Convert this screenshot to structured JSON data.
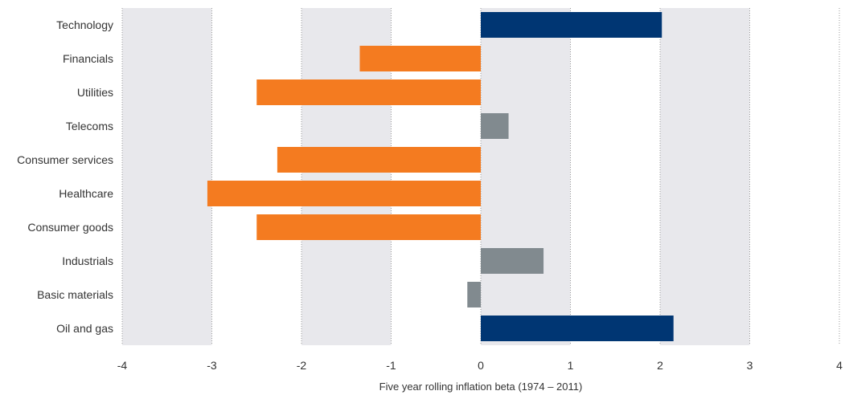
{
  "chart_data": {
    "type": "bar",
    "orientation": "horizontal",
    "title": "",
    "xlabel": "Five year rolling inflation beta (1974 – 2011)",
    "ylabel": "",
    "xlim": [
      -4,
      4
    ],
    "x_ticks": [
      "-4",
      "-3",
      "-2",
      "-1",
      "0",
      "1",
      "2",
      "3",
      "4"
    ],
    "categories": [
      "Technology",
      "Financials",
      "Utilities",
      "Telecoms",
      "Consumer services",
      "Healthcare",
      "Consumer goods",
      "Industrials",
      "Basic materials",
      "Oil and gas"
    ],
    "values": [
      2.02,
      -1.35,
      -2.5,
      0.31,
      -2.27,
      -3.05,
      -2.5,
      0.7,
      -0.15,
      2.15
    ],
    "bar_colors": [
      "#003673",
      "#f47b20",
      "#f47b20",
      "#818a8f",
      "#f47b20",
      "#f47b20",
      "#f47b20",
      "#818a8f",
      "#818a8f",
      "#003673"
    ],
    "shaded_bands": [
      [
        -4,
        -3
      ],
      [
        -2,
        -1
      ],
      [
        0,
        1
      ],
      [
        2,
        3
      ]
    ],
    "band_color": "#e8e8ec",
    "grid": true,
    "legend": "none"
  }
}
